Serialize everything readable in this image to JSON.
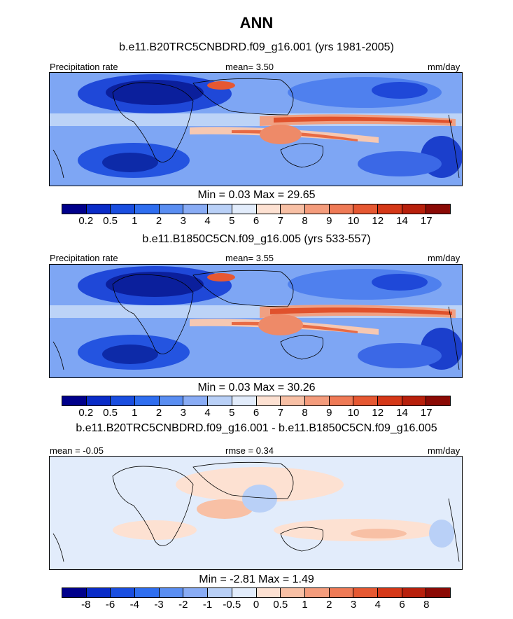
{
  "title": "ANN",
  "panels": [
    {
      "title": "b.e11.B20TRC5CNBDRD.f09_g16.001 (yrs 1981-2005)",
      "left_label": "Precipitation rate",
      "center_label": "mean=   3.50",
      "units": "mm/day",
      "minmax": "Min =   0.03 Max =  29.65"
    },
    {
      "title": "b.e11.B1850C5CN.f09_g16.005 (yrs 533-557)",
      "left_label": "Precipitation rate",
      "center_label": "mean=   3.55",
      "units": "mm/day",
      "minmax": "Min =   0.03 Max =  30.26"
    },
    {
      "title": "b.e11.B20TRC5CNBDRD.f09_g16.001 - b.e11.B1850C5CN.f09_g16.005",
      "left_label": "mean =  -0.05",
      "center_label": "rmse =   0.34",
      "units": "mm/day",
      "minmax": "Min =  -2.81 Max =   1.49"
    }
  ],
  "colorbars": {
    "precip": {
      "colors": [
        "#00008b",
        "#0a2cc8",
        "#1a4ee0",
        "#2f6ef0",
        "#5a8ef2",
        "#89acf5",
        "#b9d0f7",
        "#e2ecfb",
        "#fde1d2",
        "#f8c0a5",
        "#f49c7c",
        "#ef7a56",
        "#e65832",
        "#d53818",
        "#b8200c",
        "#8b0a05"
      ],
      "labels": [
        "0.2",
        "0.5",
        "1",
        "2",
        "3",
        "4",
        "5",
        "6",
        "7",
        "8",
        "9",
        "10",
        "12",
        "14",
        "17"
      ]
    },
    "diff": {
      "colors": [
        "#00008b",
        "#0a2cc8",
        "#1a4ee0",
        "#2f6ef0",
        "#5a8ef2",
        "#89acf5",
        "#b9d0f7",
        "#e2ecfb",
        "#fde1d2",
        "#f8c0a5",
        "#f49c7c",
        "#ef7a56",
        "#e65832",
        "#d53818",
        "#b8200c",
        "#8b0a05"
      ],
      "labels": [
        "-8",
        "-6",
        "-4",
        "-3",
        "-2",
        "-1",
        "-0.5",
        "0",
        "0.5",
        "1",
        "2",
        "3",
        "4",
        "6",
        "8"
      ]
    }
  }
}
